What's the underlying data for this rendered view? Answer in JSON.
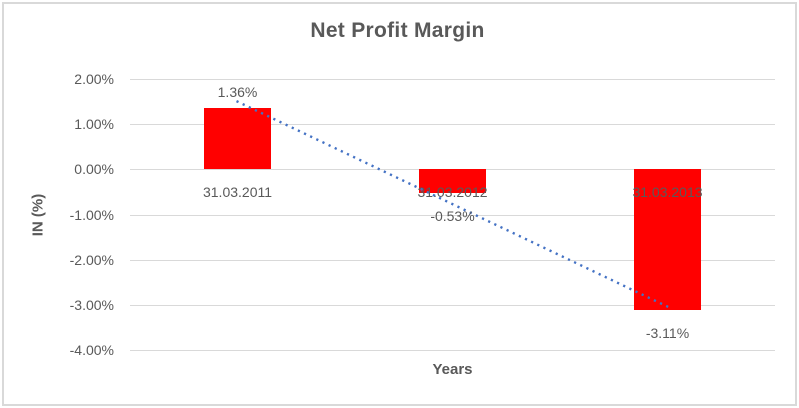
{
  "window": {
    "background_color": "#FFFFFF",
    "border_color": "#D9D9D9"
  },
  "chart_data": {
    "type": "bar",
    "title": "Net Profit Margin",
    "xlabel": "Years",
    "ylabel": "IN (%)",
    "categories": [
      "31.03.2011",
      "31.03.2012",
      "31.03.2013"
    ],
    "series": [
      {
        "name": "Net Profit Margin",
        "values": [
          1.36,
          -0.53,
          -3.11
        ]
      }
    ],
    "data_labels": [
      "1.36%",
      "-0.53%",
      "-3.11%"
    ],
    "y_ticks": [
      "2.00%",
      "1.00%",
      "0.00%",
      "-1.00%",
      "-2.00%",
      "-3.00%",
      "-4.00%"
    ],
    "y_tick_values": [
      2,
      1,
      0,
      -1,
      -2,
      -3,
      -4
    ],
    "ylim": [
      -4,
      2
    ],
    "grid": true,
    "legend": "none",
    "bar_color": "#FF0000",
    "text_color": "#595959",
    "gridline_color": "#D9D9D9",
    "trendline": {
      "type": "linear",
      "style": "dotted",
      "color": "#4472C4",
      "start_value_pct": 1.51,
      "end_value_pct": -3.05
    }
  }
}
